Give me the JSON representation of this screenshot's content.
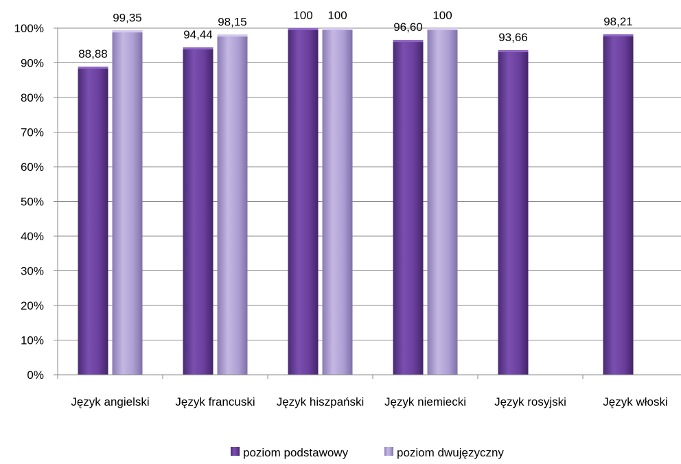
{
  "chart_data": {
    "type": "bar",
    "categories": [
      "Język angielski",
      "Język francuski",
      "Język hiszpański",
      "Język niemiecki",
      "Język rosyjski",
      "Język włoski"
    ],
    "series": [
      {
        "name": "poziom podstawowy",
        "color": "#6a3f9c",
        "values": [
          88.88,
          94.44,
          100,
          96.6,
          93.66,
          98.21
        ],
        "labels": [
          "88,88",
          "94,44",
          "100",
          "96,60",
          "93,66",
          "98,21"
        ]
      },
      {
        "name": "poziom dwujęzyczny",
        "color": "#a99bcf",
        "values": [
          99.35,
          98.15,
          100,
          100,
          null,
          null
        ],
        "labels": [
          "99,35",
          "98,15",
          "100",
          "100",
          null,
          null
        ]
      }
    ],
    "ylim": [
      0,
      100
    ],
    "yticks": [
      "0%",
      "10%",
      "20%",
      "30%",
      "40%",
      "50%",
      "60%",
      "70%",
      "80%",
      "90%",
      "100%"
    ],
    "grid": true,
    "legend_position": "bottom"
  }
}
